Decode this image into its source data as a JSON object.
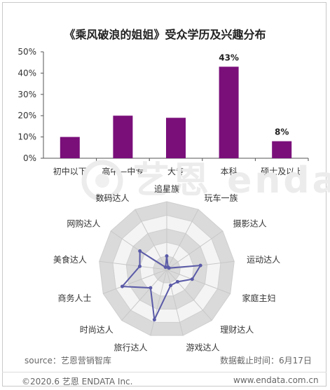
{
  "chart_title": "《乘风破浪的姐姐》受众学历及兴趣分布",
  "chart_data": [
    {
      "type": "bar",
      "title": "《乘风破浪的姐姐》受众学历及兴趣分布",
      "categories": [
        "初中以下",
        "高中—中专",
        "大专",
        "本科",
        "硕士及以上"
      ],
      "values": [
        10,
        20,
        19,
        43,
        8
      ],
      "value_labels": [
        "",
        "",
        "",
        "43%",
        "8%"
      ],
      "yticks": [
        "0%",
        "10%",
        "20%",
        "30%",
        "40%",
        "50%"
      ],
      "ylim": [
        0,
        50
      ],
      "color": "#7a0f7a",
      "grid": false
    },
    {
      "type": "radar",
      "axes": [
        "追星族",
        "玩车一族",
        "摄影达人",
        "运动达人",
        "家庭主妇",
        "理财达人",
        "游戏达人",
        "旅行达人",
        "时尚达人",
        "商务人士",
        "美食达人",
        "网购达人",
        "数码达人"
      ],
      "values": [
        1,
        0.2,
        0.2,
        2.5,
        2.0,
        1.2,
        1.2,
        3.8,
        1.8,
        3.5,
        2.0,
        2.4,
        0.2
      ],
      "rmax": 5,
      "color": "#5a5aa8"
    }
  ],
  "source": "source：艺恩营销智库",
  "data_cutoff": "数据截止时间：6月17日",
  "copyright": "©2020.6 艺恩 ENDATA Inc.",
  "website": "www.endata.com.cn",
  "watermark": "艺恩 endata"
}
